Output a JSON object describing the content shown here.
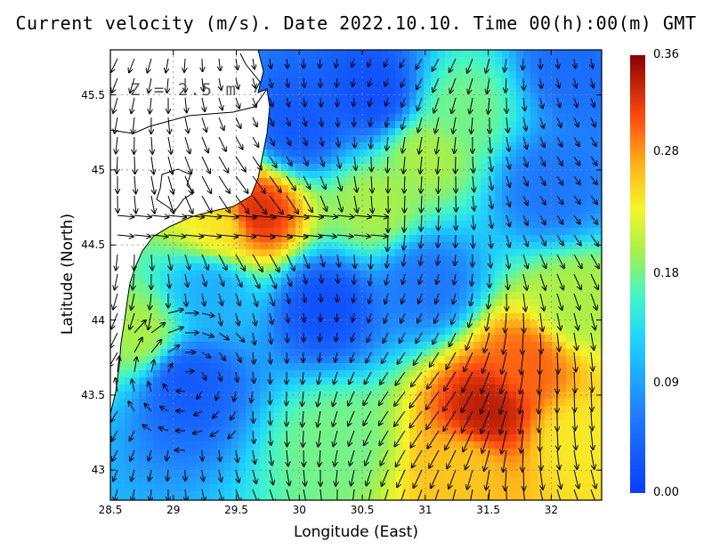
{
  "title": "Current velocity (m/s). Date 2022.10.10. Time 00(h):00(m) GMT",
  "depth_label": "Z = 2.5 m",
  "chart_data": {
    "type": "heatmap",
    "title": "Current velocity (m/s). Date 2022.10.10. Time 00(h):00(m) GMT",
    "xlabel": "Longitude (East)",
    "ylabel": "Latitude (North)",
    "xlim": [
      28.5,
      32.4
    ],
    "ylim": [
      42.8,
      45.8
    ],
    "xticks": [
      "28.5",
      "29",
      "29.5",
      "30",
      "30.5",
      "31",
      "31.5",
      "32"
    ],
    "xtick_values": [
      28.5,
      29,
      29.5,
      30,
      30.5,
      31,
      31.5,
      32
    ],
    "yticks": [
      "43",
      "43.5",
      "44",
      "44.5",
      "45",
      "45.5"
    ],
    "ytick_values": [
      43,
      43.5,
      44,
      44.5,
      45,
      45.5
    ],
    "grid": "dotted",
    "colorbar": {
      "ticks": [
        "0.36",
        "0.28",
        "0.18",
        "0.09",
        "0.00"
      ],
      "tick_values": [
        0.36,
        0.28,
        0.18,
        0.09,
        0.0
      ],
      "range": [
        0.0,
        0.36
      ],
      "colormap": "jet"
    },
    "speed_features": [
      {
        "lon": 31.5,
        "lat": 43.4,
        "speed": 0.34
      },
      {
        "lon": 31.8,
        "lat": 43.7,
        "speed": 0.3
      },
      {
        "lon": 31.3,
        "lat": 43.0,
        "speed": 0.26
      },
      {
        "lon": 32.2,
        "lat": 43.2,
        "speed": 0.24
      },
      {
        "lon": 29.65,
        "lat": 44.7,
        "speed": 0.33
      },
      {
        "lon": 29.4,
        "lat": 44.62,
        "speed": 0.24
      },
      {
        "lon": 31.0,
        "lat": 45.1,
        "speed": 0.2
      },
      {
        "lon": 31.3,
        "lat": 45.4,
        "speed": 0.18
      },
      {
        "lon": 30.6,
        "lat": 44.75,
        "speed": 0.2
      },
      {
        "lon": 32.2,
        "lat": 44.1,
        "speed": 0.2
      },
      {
        "lon": 28.75,
        "lat": 43.9,
        "speed": 0.2
      },
      {
        "lon": 30.3,
        "lat": 43.2,
        "speed": 0.18
      },
      {
        "lon": 30.2,
        "lat": 44.1,
        "speed": 0.02
      },
      {
        "lon": 30.0,
        "lat": 45.3,
        "speed": 0.03
      },
      {
        "lon": 30.6,
        "lat": 45.5,
        "speed": 0.02
      },
      {
        "lon": 29.1,
        "lat": 43.6,
        "speed": 0.03
      },
      {
        "lon": 31.0,
        "lat": 44.25,
        "speed": 0.06
      },
      {
        "lon": 32.0,
        "lat": 44.9,
        "speed": 0.06
      },
      {
        "lon": 32.2,
        "lat": 45.7,
        "speed": 0.05
      },
      {
        "lon": 29.3,
        "lat": 44.2,
        "speed": 0.1
      }
    ]
  }
}
